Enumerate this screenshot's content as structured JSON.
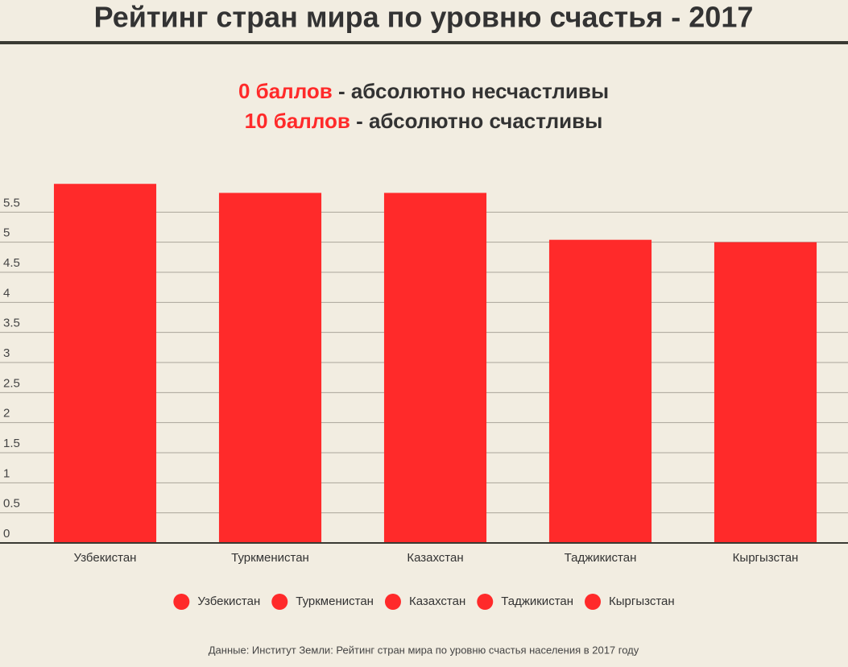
{
  "chart_data": {
    "type": "bar",
    "title": "Рейтинг стран мира по уровню счастья - 2017",
    "subtitle": [
      {
        "highlight": "0 баллов",
        "text": " - абсолютно несчастливы"
      },
      {
        "highlight": "10 баллов",
        "text": " - абсолютно счастливы"
      }
    ],
    "categories": [
      "Узбекистан",
      "Туркменистан",
      "Казахстан",
      "Таджикистан",
      "Кыргызстан"
    ],
    "values": [
      5.97,
      5.82,
      5.82,
      5.04,
      5.0
    ],
    "color": "#ff2a2a",
    "ylim": [
      0,
      6
    ],
    "yticks": [
      0,
      0.5,
      1,
      1.5,
      2,
      2.5,
      3,
      3.5,
      4,
      4.5,
      5,
      5.5
    ],
    "grid": true,
    "legend": "bottom",
    "source": "Данные: Институт Земли: Рейтинг стран мира по уровню счастья населения в 2017 году"
  }
}
